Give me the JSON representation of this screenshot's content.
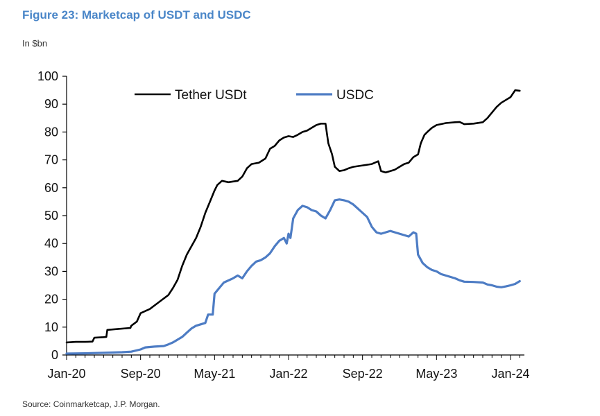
{
  "figure_title": "Figure 23: Marketcap of USDT and USDC",
  "unit_label": "In $bn",
  "source": "Source: Coinmarketcap, J.P. Morgan.",
  "chart_data": {
    "type": "line",
    "title": "Figure 23: Marketcap of USDT and USDC",
    "xlabel": "",
    "ylabel": "In $bn",
    "ylim": [
      0,
      100
    ],
    "yticks": [
      0,
      10,
      20,
      30,
      40,
      50,
      60,
      70,
      80,
      90,
      100
    ],
    "x_unit": "months since Jan-20",
    "xlim": [
      0,
      49.5
    ],
    "xticks": [
      {
        "label": "Jan-20",
        "x": 0
      },
      {
        "label": "Sep-20",
        "x": 8
      },
      {
        "label": "May-21",
        "x": 16
      },
      {
        "label": "Jan-22",
        "x": 24
      },
      {
        "label": "Sep-22",
        "x": 32
      },
      {
        "label": "May-23",
        "x": 40
      },
      {
        "label": "Jan-24",
        "x": 48
      }
    ],
    "legend_position": "top",
    "series": [
      {
        "name": "Tether USDt",
        "color": "#000000",
        "points": [
          [
            0,
            4.5
          ],
          [
            1.0,
            4.7
          ],
          [
            2.0,
            4.7
          ],
          [
            2.8,
            4.8
          ],
          [
            3.0,
            6.2
          ],
          [
            4.0,
            6.4
          ],
          [
            4.3,
            6.5
          ],
          [
            4.4,
            9.0
          ],
          [
            5.5,
            9.3
          ],
          [
            6.9,
            9.7
          ],
          [
            7.0,
            10.5
          ],
          [
            7.6,
            12.0
          ],
          [
            8.0,
            15.0
          ],
          [
            9.0,
            16.5
          ],
          [
            10.0,
            19.0
          ],
          [
            11.0,
            21.5
          ],
          [
            11.5,
            24.0
          ],
          [
            12.0,
            27.0
          ],
          [
            12.5,
            32.0
          ],
          [
            13.0,
            36.0
          ],
          [
            13.5,
            39.0
          ],
          [
            14.0,
            42.0
          ],
          [
            14.5,
            46.0
          ],
          [
            15.0,
            51.0
          ],
          [
            15.5,
            55.0
          ],
          [
            16.0,
            59.0
          ],
          [
            16.3,
            61.0
          ],
          [
            16.8,
            62.5
          ],
          [
            17.5,
            62.0
          ],
          [
            18.5,
            62.5
          ],
          [
            19.0,
            64.0
          ],
          [
            19.5,
            67.0
          ],
          [
            20.0,
            68.5
          ],
          [
            20.8,
            69.0
          ],
          [
            21.5,
            70.5
          ],
          [
            22.0,
            74.0
          ],
          [
            22.5,
            75.0
          ],
          [
            23.0,
            77.0
          ],
          [
            23.5,
            78.0
          ],
          [
            24.0,
            78.5
          ],
          [
            24.5,
            78.2
          ],
          [
            25.0,
            79.0
          ],
          [
            25.5,
            80.0
          ],
          [
            26.0,
            80.5
          ],
          [
            26.5,
            81.5
          ],
          [
            27.0,
            82.5
          ],
          [
            27.5,
            83.0
          ],
          [
            28.0,
            83.0
          ],
          [
            28.3,
            76.0
          ],
          [
            28.7,
            72.0
          ],
          [
            29.0,
            67.5
          ],
          [
            29.5,
            66.0
          ],
          [
            30.0,
            66.3
          ],
          [
            30.5,
            67.0
          ],
          [
            31.0,
            67.5
          ],
          [
            32.0,
            68.0
          ],
          [
            33.0,
            68.5
          ],
          [
            33.7,
            69.5
          ],
          [
            34.0,
            66.0
          ],
          [
            34.5,
            65.5
          ],
          [
            35.0,
            66.0
          ],
          [
            35.5,
            66.5
          ],
          [
            36.0,
            67.5
          ],
          [
            36.5,
            68.5
          ],
          [
            37.0,
            69.0
          ],
          [
            37.5,
            71.0
          ],
          [
            38.0,
            72.0
          ],
          [
            38.3,
            76.0
          ],
          [
            38.7,
            79.0
          ],
          [
            39.0,
            80.0
          ],
          [
            39.5,
            81.5
          ],
          [
            40.0,
            82.5
          ],
          [
            41.0,
            83.2
          ],
          [
            42.0,
            83.5
          ],
          [
            42.5,
            83.6
          ],
          [
            43.0,
            82.8
          ],
          [
            44.0,
            83.0
          ],
          [
            45.0,
            83.5
          ],
          [
            45.5,
            85.0
          ],
          [
            46.0,
            87.0
          ],
          [
            46.5,
            89.0
          ],
          [
            47.0,
            90.5
          ],
          [
            47.5,
            91.5
          ],
          [
            48.0,
            92.5
          ],
          [
            48.5,
            95.0
          ],
          [
            49.0,
            94.8
          ]
        ]
      },
      {
        "name": "USDC",
        "color": "#4d7cc4",
        "points": [
          [
            0,
            0.5
          ],
          [
            2.0,
            0.6
          ],
          [
            4.0,
            0.8
          ],
          [
            6.0,
            1.0
          ],
          [
            7.0,
            1.2
          ],
          [
            8.0,
            2.0
          ],
          [
            8.5,
            2.7
          ],
          [
            9.5,
            3.0
          ],
          [
            10.5,
            3.2
          ],
          [
            11.0,
            3.8
          ],
          [
            11.5,
            4.5
          ],
          [
            12.0,
            5.5
          ],
          [
            12.5,
            6.5
          ],
          [
            13.0,
            8.0
          ],
          [
            13.5,
            9.5
          ],
          [
            14.0,
            10.5
          ],
          [
            14.5,
            11.0
          ],
          [
            15.0,
            11.5
          ],
          [
            15.3,
            14.5
          ],
          [
            15.8,
            14.5
          ],
          [
            16.0,
            22.0
          ],
          [
            16.5,
            24.0
          ],
          [
            17.0,
            26.0
          ],
          [
            18.0,
            27.5
          ],
          [
            18.5,
            28.5
          ],
          [
            19.0,
            27.5
          ],
          [
            19.5,
            30.0
          ],
          [
            20.0,
            32.0
          ],
          [
            20.5,
            33.5
          ],
          [
            21.0,
            34.0
          ],
          [
            21.5,
            35.0
          ],
          [
            22.0,
            36.5
          ],
          [
            22.5,
            39.0
          ],
          [
            23.0,
            41.0
          ],
          [
            23.5,
            42.0
          ],
          [
            23.8,
            40.0
          ],
          [
            24.0,
            43.5
          ],
          [
            24.2,
            42.0
          ],
          [
            24.5,
            49.0
          ],
          [
            25.0,
            52.0
          ],
          [
            25.5,
            53.5
          ],
          [
            26.0,
            53.0
          ],
          [
            26.5,
            52.0
          ],
          [
            27.0,
            51.5
          ],
          [
            27.5,
            50.0
          ],
          [
            28.0,
            49.0
          ],
          [
            28.5,
            52.0
          ],
          [
            29.0,
            55.5
          ],
          [
            29.5,
            55.8
          ],
          [
            30.0,
            55.5
          ],
          [
            30.5,
            55.0
          ],
          [
            31.0,
            54.0
          ],
          [
            31.5,
            52.5
          ],
          [
            32.0,
            51.0
          ],
          [
            32.5,
            49.5
          ],
          [
            33.0,
            46.0
          ],
          [
            33.5,
            44.0
          ],
          [
            34.0,
            43.5
          ],
          [
            34.5,
            44.0
          ],
          [
            35.0,
            44.5
          ],
          [
            35.5,
            44.0
          ],
          [
            36.0,
            43.5
          ],
          [
            36.5,
            43.0
          ],
          [
            37.0,
            42.5
          ],
          [
            37.5,
            44.0
          ],
          [
            37.8,
            43.5
          ],
          [
            38.0,
            36.0
          ],
          [
            38.5,
            33.0
          ],
          [
            39.0,
            31.5
          ],
          [
            39.5,
            30.5
          ],
          [
            40.0,
            30.0
          ],
          [
            40.5,
            29.0
          ],
          [
            41.0,
            28.5
          ],
          [
            41.5,
            28.0
          ],
          [
            42.0,
            27.5
          ],
          [
            42.5,
            26.8
          ],
          [
            43.0,
            26.3
          ],
          [
            44.0,
            26.2
          ],
          [
            45.0,
            26.0
          ],
          [
            45.5,
            25.3
          ],
          [
            46.0,
            25.0
          ],
          [
            46.5,
            24.5
          ],
          [
            47.0,
            24.3
          ],
          [
            47.5,
            24.6
          ],
          [
            48.0,
            25.0
          ],
          [
            48.5,
            25.5
          ],
          [
            49.0,
            26.5
          ]
        ]
      }
    ]
  }
}
